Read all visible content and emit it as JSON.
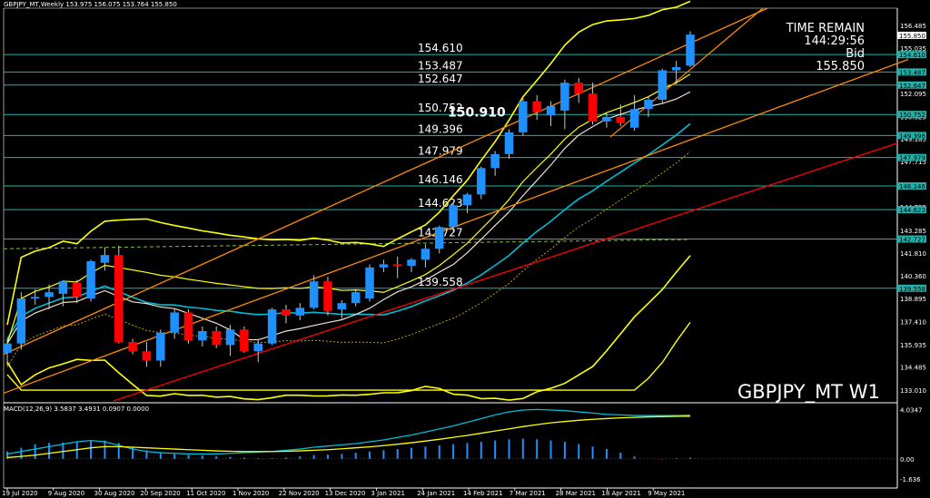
{
  "header": {
    "symbol_line": "GBPJPY_MT,Weekly  153.975 156.075 153.764 155.850",
    "macd_line": "MACD(12,26,9) 3.5837 3.4931 0.0907 0.0000"
  },
  "info": {
    "time_remain_label": "TIME REMAIN",
    "time_remain_value": "144:29:56",
    "bid_label": "Bid",
    "bid_value": "155.850",
    "watermark": "GBPJPY_MT W1"
  },
  "annotation": {
    "text": "150.910",
    "price": 150.91
  },
  "colors": {
    "bull": "#1e90ff",
    "bear": "#ff0000",
    "level": "#20b2aa",
    "boll": "#ffff00",
    "channel": "#ff8c00",
    "trend": "#ff0000",
    "ma": "#00bcd4"
  },
  "chart_data": {
    "type": "candlestick",
    "symbol": "GBPJPY_MT",
    "timeframe": "Weekly",
    "ylim": [
      132.3,
      157.6
    ],
    "y_ticks": [
      156.485,
      155.035,
      153.565,
      152.095,
      150.625,
      149.185,
      147.715,
      146.265,
      144.795,
      143.285,
      141.81,
      140.36,
      138.895,
      137.41,
      135.935,
      134.485,
      133.01
    ],
    "x_tick_labels": [
      "19 Jul 2020",
      "9 Aug 2020",
      "30 Aug 2020",
      "20 Sep 2020",
      "11 Oct 2020",
      "1 Nov 2020",
      "22 Nov 2020",
      "13 Dec 2020",
      "3 Jan 2021",
      "24 Jan 2021",
      "14 Feb 2021",
      "7 Mar 2021",
      "28 Mar 2021",
      "18 Apr 2021",
      "9 May 2021"
    ],
    "levels": [
      {
        "label": "154.610",
        "price": 154.61
      },
      {
        "label": "153.487",
        "price": 153.487
      },
      {
        "label": "152.647",
        "price": 152.647
      },
      {
        "label": "150.752",
        "price": 150.752
      },
      {
        "label": "149.396",
        "price": 149.396
      },
      {
        "label": "147.979",
        "price": 147.979
      },
      {
        "label": "146.146",
        "price": 146.146
      },
      {
        "label": "144.623",
        "price": 144.623
      },
      {
        "label": "142.727",
        "price": 142.727
      },
      {
        "label": "139.558",
        "price": 139.558
      }
    ],
    "current_price_label": "155.850",
    "candles": [
      {
        "o": 135.4,
        "h": 136.3,
        "l": 134.6,
        "c": 136.0
      },
      {
        "o": 136.0,
        "h": 139.3,
        "l": 135.6,
        "c": 138.9
      },
      {
        "o": 138.9,
        "h": 139.5,
        "l": 138.5,
        "c": 139.0
      },
      {
        "o": 139.0,
        "h": 139.8,
        "l": 138.2,
        "c": 139.3
      },
      {
        "o": 139.2,
        "h": 140.0,
        "l": 138.4,
        "c": 140.0
      },
      {
        "o": 139.9,
        "h": 140.1,
        "l": 138.6,
        "c": 139.0
      },
      {
        "o": 138.9,
        "h": 141.4,
        "l": 138.7,
        "c": 141.3
      },
      {
        "o": 141.2,
        "h": 142.2,
        "l": 140.7,
        "c": 141.7
      },
      {
        "o": 141.7,
        "h": 142.3,
        "l": 136.0,
        "c": 136.1
      },
      {
        "o": 136.1,
        "h": 136.3,
        "l": 135.3,
        "c": 135.5
      },
      {
        "o": 135.5,
        "h": 136.1,
        "l": 134.5,
        "c": 134.9
      },
      {
        "o": 134.9,
        "h": 136.9,
        "l": 134.5,
        "c": 136.7
      },
      {
        "o": 136.7,
        "h": 138.2,
        "l": 136.3,
        "c": 138.0
      },
      {
        "o": 138.0,
        "h": 138.2,
        "l": 136.0,
        "c": 136.2
      },
      {
        "o": 136.2,
        "h": 137.1,
        "l": 135.8,
        "c": 136.8
      },
      {
        "o": 136.8,
        "h": 137.1,
        "l": 135.7,
        "c": 135.9
      },
      {
        "o": 135.9,
        "h": 137.2,
        "l": 135.2,
        "c": 136.9
      },
      {
        "o": 136.9,
        "h": 137.1,
        "l": 135.4,
        "c": 135.5
      },
      {
        "o": 135.5,
        "h": 136.2,
        "l": 134.8,
        "c": 136.0
      },
      {
        "o": 136.0,
        "h": 138.3,
        "l": 135.9,
        "c": 138.2
      },
      {
        "o": 138.2,
        "h": 138.5,
        "l": 137.3,
        "c": 137.8
      },
      {
        "o": 137.8,
        "h": 138.6,
        "l": 137.5,
        "c": 138.3
      },
      {
        "o": 138.3,
        "h": 140.4,
        "l": 138.2,
        "c": 140.0
      },
      {
        "o": 140.0,
        "h": 140.3,
        "l": 137.8,
        "c": 138.1
      },
      {
        "o": 138.2,
        "h": 138.8,
        "l": 137.6,
        "c": 138.6
      },
      {
        "o": 138.6,
        "h": 139.5,
        "l": 138.4,
        "c": 139.3
      },
      {
        "o": 138.9,
        "h": 141.1,
        "l": 138.7,
        "c": 140.9
      },
      {
        "o": 140.9,
        "h": 141.4,
        "l": 140.6,
        "c": 141.1
      },
      {
        "o": 141.1,
        "h": 141.6,
        "l": 140.2,
        "c": 141.0
      },
      {
        "o": 141.0,
        "h": 141.5,
        "l": 140.6,
        "c": 141.4
      },
      {
        "o": 141.4,
        "h": 142.4,
        "l": 140.9,
        "c": 142.1
      },
      {
        "o": 142.1,
        "h": 143.6,
        "l": 141.8,
        "c": 143.5
      },
      {
        "o": 143.5,
        "h": 145.0,
        "l": 143.2,
        "c": 144.9
      },
      {
        "o": 144.9,
        "h": 145.7,
        "l": 144.4,
        "c": 145.6
      },
      {
        "o": 145.6,
        "h": 147.4,
        "l": 145.3,
        "c": 147.3
      },
      {
        "o": 147.3,
        "h": 148.4,
        "l": 146.8,
        "c": 148.2
      },
      {
        "o": 148.2,
        "h": 149.8,
        "l": 147.9,
        "c": 149.6
      },
      {
        "o": 149.6,
        "h": 151.8,
        "l": 149.4,
        "c": 151.6
      },
      {
        "o": 151.6,
        "h": 152.0,
        "l": 150.4,
        "c": 150.9
      },
      {
        "o": 150.7,
        "h": 151.6,
        "l": 150.0,
        "c": 151.3
      },
      {
        "o": 151.0,
        "h": 153.0,
        "l": 149.8,
        "c": 152.8
      },
      {
        "o": 152.8,
        "h": 153.1,
        "l": 151.5,
        "c": 152.1
      },
      {
        "o": 152.1,
        "h": 152.8,
        "l": 150.1,
        "c": 150.3
      },
      {
        "o": 150.3,
        "h": 150.9,
        "l": 149.9,
        "c": 150.6
      },
      {
        "o": 150.6,
        "h": 151.4,
        "l": 150.0,
        "c": 150.2
      },
      {
        "o": 149.9,
        "h": 152.0,
        "l": 149.7,
        "c": 151.1
      },
      {
        "o": 151.1,
        "h": 151.9,
        "l": 150.6,
        "c": 151.7
      },
      {
        "o": 151.7,
        "h": 153.7,
        "l": 151.5,
        "c": 153.6
      },
      {
        "o": 153.6,
        "h": 154.2,
        "l": 152.7,
        "c": 153.8
      },
      {
        "o": 153.9,
        "h": 156.1,
        "l": 153.8,
        "c": 155.9
      }
    ],
    "macd": {
      "ylim": [
        -1.8,
        4.3
      ],
      "y_ticks": [
        4.0347,
        0.0,
        -1.636
      ],
      "histogram": [
        0.6,
        0.9,
        1.2,
        1.3,
        1.35,
        1.4,
        1.45,
        1.5,
        1.3,
        1.0,
        0.7,
        0.5,
        0.4,
        0.3,
        0.25,
        0.2,
        0.15,
        0.1,
        0.05,
        0.05,
        0.1,
        0.2,
        0.3,
        0.35,
        0.4,
        0.5,
        0.6,
        0.7,
        0.8,
        0.9,
        1.0,
        1.1,
        1.2,
        1.3,
        1.4,
        1.5,
        1.6,
        1.65,
        1.6,
        1.5,
        1.4,
        1.2,
        1.0,
        0.8,
        0.5,
        0.2,
        0.0,
        -0.05,
        0.05,
        0.09
      ],
      "macd_line": [
        0.4,
        0.6,
        0.8,
        1.0,
        1.2,
        1.4,
        1.5,
        1.4,
        1.1,
        0.8,
        0.6,
        0.5,
        0.45,
        0.4,
        0.4,
        0.4,
        0.45,
        0.5,
        0.55,
        0.6,
        0.7,
        0.8,
        0.95,
        1.05,
        1.15,
        1.25,
        1.4,
        1.55,
        1.75,
        1.95,
        2.2,
        2.45,
        2.7,
        3.0,
        3.3,
        3.6,
        3.85,
        4.0,
        4.05,
        4.0,
        3.95,
        3.85,
        3.75,
        3.65,
        3.6,
        3.55,
        3.55,
        3.55,
        3.55,
        3.58
      ],
      "signal_line": [
        0.1,
        0.2,
        0.3,
        0.45,
        0.6,
        0.75,
        0.9,
        1.0,
        1.0,
        0.95,
        0.9,
        0.85,
        0.8,
        0.75,
        0.7,
        0.65,
        0.62,
        0.6,
        0.6,
        0.6,
        0.62,
        0.65,
        0.7,
        0.75,
        0.82,
        0.9,
        0.98,
        1.08,
        1.2,
        1.32,
        1.46,
        1.6,
        1.76,
        1.92,
        2.1,
        2.28,
        2.46,
        2.64,
        2.8,
        2.95,
        3.06,
        3.16,
        3.24,
        3.3,
        3.36,
        3.4,
        3.44,
        3.46,
        3.48,
        3.49
      ]
    }
  }
}
